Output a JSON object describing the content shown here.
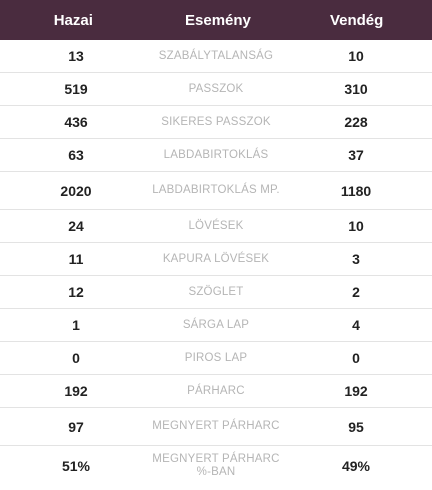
{
  "header": {
    "home": "Hazai",
    "event": "Esemény",
    "away": "Vendég"
  },
  "rows": [
    {
      "home": "13",
      "event": "SZABÁLYTALANSÁG",
      "away": "10"
    },
    {
      "home": "519",
      "event": "PASSZOK",
      "away": "310"
    },
    {
      "home": "436",
      "event": "SIKERES PASSZOK",
      "away": "228"
    },
    {
      "home": "63",
      "event": "LABDABIRTOKLÁS",
      "away": "37"
    },
    {
      "home": "2020",
      "event": "LABDABIRTOKLÁS MP.",
      "away": "1180"
    },
    {
      "home": "24",
      "event": "LÖVÉSEK",
      "away": "10"
    },
    {
      "home": "11",
      "event": "KAPURA LÖVÉSEK",
      "away": "3"
    },
    {
      "home": "12",
      "event": "SZÖGLET",
      "away": "2"
    },
    {
      "home": "1",
      "event": "SÁRGA LAP",
      "away": "4"
    },
    {
      "home": "0",
      "event": "PIROS LAP",
      "away": "0"
    },
    {
      "home": "192",
      "event": "PÁRHARC",
      "away": "192"
    },
    {
      "home": "97",
      "event": "MEGNYERT PÁRHARC",
      "away": "95"
    },
    {
      "home": "51%",
      "event": "MEGNYERT PÁRHARC %-BAN",
      "away": "49%"
    }
  ],
  "colors": {
    "header_bg": "#4a2c3f",
    "header_text": "#ffffff",
    "event_text": "#b5b5b5",
    "value_text": "#222222",
    "divider": "#e3e3e3"
  }
}
